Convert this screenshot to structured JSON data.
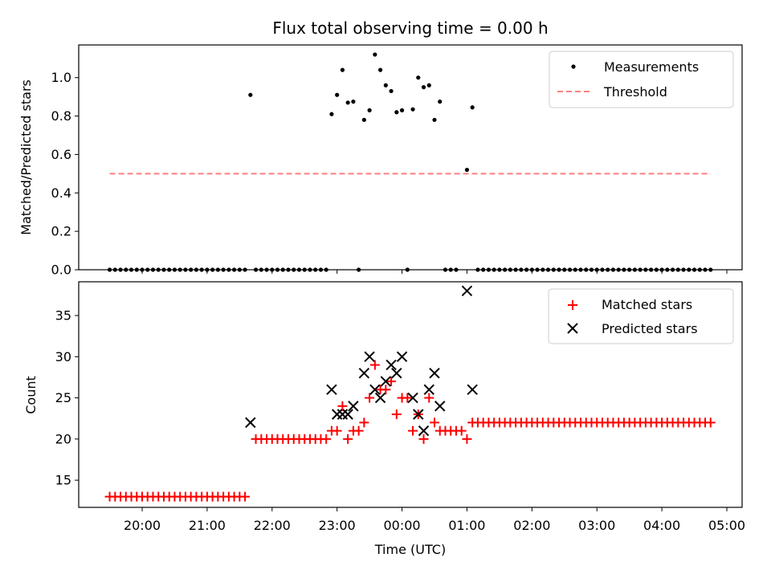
{
  "chart_data": [
    {
      "type": "scatter",
      "title": "Flux total observing time = 0.00 h",
      "xlabel": "",
      "ylabel": "Matched/Predicted stars",
      "ylim": [
        0,
        1.17
      ],
      "yticks": [
        0.0,
        0.2,
        0.4,
        0.6,
        0.8,
        1.0
      ],
      "ytick_labels": [
        "0.0",
        "0.2",
        "0.4",
        "0.6",
        "0.8",
        "1.0"
      ],
      "legend_position": "top-right",
      "series": [
        {
          "name": "Measurements",
          "marker": "dot",
          "color": "#000000",
          "points": [
            [
              "19:30",
              0
            ],
            [
              "19:35",
              0
            ],
            [
              "19:40",
              0
            ],
            [
              "19:45",
              0
            ],
            [
              "19:50",
              0
            ],
            [
              "19:55",
              0
            ],
            [
              "20:00",
              0
            ],
            [
              "20:05",
              0
            ],
            [
              "20:10",
              0
            ],
            [
              "20:15",
              0
            ],
            [
              "20:20",
              0
            ],
            [
              "20:25",
              0
            ],
            [
              "20:30",
              0
            ],
            [
              "20:35",
              0
            ],
            [
              "20:40",
              0
            ],
            [
              "20:45",
              0
            ],
            [
              "20:50",
              0
            ],
            [
              "20:55",
              0
            ],
            [
              "21:00",
              0
            ],
            [
              "21:05",
              0
            ],
            [
              "21:10",
              0
            ],
            [
              "21:15",
              0
            ],
            [
              "21:20",
              0
            ],
            [
              "21:25",
              0
            ],
            [
              "21:30",
              0
            ],
            [
              "21:35",
              0
            ],
            [
              "21:40",
              0.91
            ],
            [
              "21:45",
              0
            ],
            [
              "21:50",
              0
            ],
            [
              "21:55",
              0
            ],
            [
              "22:00",
              0
            ],
            [
              "22:05",
              0
            ],
            [
              "22:10",
              0
            ],
            [
              "22:15",
              0
            ],
            [
              "22:20",
              0
            ],
            [
              "22:25",
              0
            ],
            [
              "22:30",
              0
            ],
            [
              "22:35",
              0
            ],
            [
              "22:40",
              0
            ],
            [
              "22:45",
              0
            ],
            [
              "22:50",
              0
            ],
            [
              "22:55",
              0.81
            ],
            [
              "23:00",
              0.91
            ],
            [
              "23:05",
              1.04
            ],
            [
              "23:10",
              0.87
            ],
            [
              "23:15",
              0.875
            ],
            [
              "23:20",
              0
            ],
            [
              "23:25",
              0.78
            ],
            [
              "23:30",
              0.83
            ],
            [
              "23:35",
              1.12
            ],
            [
              "23:40",
              1.04
            ],
            [
              "23:45",
              0.96
            ],
            [
              "23:50",
              0.93
            ],
            [
              "23:55",
              0.82
            ],
            [
              "00:00",
              0.83
            ],
            [
              "00:05",
              0
            ],
            [
              "00:10",
              0.835
            ],
            [
              "00:15",
              1.0
            ],
            [
              "00:20",
              0.95
            ],
            [
              "00:25",
              0.96
            ],
            [
              "00:30",
              0.78
            ],
            [
              "00:35",
              0.875
            ],
            [
              "00:40",
              0
            ],
            [
              "00:45",
              0
            ],
            [
              "00:50",
              0
            ],
            [
              "01:00",
              0.52
            ],
            [
              "01:05",
              0.845
            ],
            [
              "01:10",
              0
            ],
            [
              "01:15",
              0
            ],
            [
              "01:20",
              0
            ],
            [
              "01:25",
              0
            ],
            [
              "01:30",
              0
            ],
            [
              "01:35",
              0
            ],
            [
              "01:40",
              0
            ],
            [
              "01:45",
              0
            ],
            [
              "01:50",
              0
            ],
            [
              "01:55",
              0
            ],
            [
              "02:00",
              0
            ],
            [
              "02:05",
              0
            ],
            [
              "02:10",
              0
            ],
            [
              "02:15",
              0
            ],
            [
              "02:20",
              0
            ],
            [
              "02:25",
              0
            ],
            [
              "02:30",
              0
            ],
            [
              "02:35",
              0
            ],
            [
              "02:40",
              0
            ],
            [
              "02:45",
              0
            ],
            [
              "02:50",
              0
            ],
            [
              "02:55",
              0
            ],
            [
              "03:00",
              0
            ],
            [
              "03:05",
              0
            ],
            [
              "03:10",
              0
            ],
            [
              "03:15",
              0
            ],
            [
              "03:20",
              0
            ],
            [
              "03:25",
              0
            ],
            [
              "03:30",
              0
            ],
            [
              "03:35",
              0
            ],
            [
              "03:40",
              0
            ],
            [
              "03:45",
              0
            ],
            [
              "03:50",
              0
            ],
            [
              "03:55",
              0
            ],
            [
              "04:00",
              0
            ],
            [
              "04:05",
              0
            ],
            [
              "04:10",
              0
            ],
            [
              "04:15",
              0
            ],
            [
              "04:20",
              0
            ],
            [
              "04:25",
              0
            ],
            [
              "04:30",
              0
            ],
            [
              "04:35",
              0
            ],
            [
              "04:40",
              0
            ],
            [
              "04:45",
              0
            ]
          ]
        },
        {
          "name": "Threshold",
          "marker": "dashed-line",
          "color": "#ff7f7f",
          "points": [
            [
              "19:30",
              0.5
            ],
            [
              "04:45",
              0.5
            ]
          ]
        }
      ]
    },
    {
      "type": "scatter",
      "title": "",
      "xlabel": "Time (UTC)",
      "ylabel": "Count",
      "ylim": [
        11.7,
        39.1
      ],
      "yticks": [
        15,
        20,
        25,
        30,
        35
      ],
      "ytick_labels": [
        "15",
        "20",
        "25",
        "30",
        "35"
      ],
      "x_tick_labels": [
        "20:00",
        "21:00",
        "22:00",
        "23:00",
        "00:00",
        "01:00",
        "02:00",
        "03:00",
        "04:00",
        "05:00"
      ],
      "legend_position": "top-right",
      "series": [
        {
          "name": "Matched stars",
          "marker": "plus",
          "color": "#ff0000",
          "points": [
            [
              "19:30",
              13
            ],
            [
              "19:35",
              13
            ],
            [
              "19:40",
              13
            ],
            [
              "19:45",
              13
            ],
            [
              "19:50",
              13
            ],
            [
              "19:55",
              13
            ],
            [
              "20:00",
              13
            ],
            [
              "20:05",
              13
            ],
            [
              "20:10",
              13
            ],
            [
              "20:15",
              13
            ],
            [
              "20:20",
              13
            ],
            [
              "20:25",
              13
            ],
            [
              "20:30",
              13
            ],
            [
              "20:35",
              13
            ],
            [
              "20:40",
              13
            ],
            [
              "20:45",
              13
            ],
            [
              "20:50",
              13
            ],
            [
              "20:55",
              13
            ],
            [
              "21:00",
              13
            ],
            [
              "21:05",
              13
            ],
            [
              "21:10",
              13
            ],
            [
              "21:15",
              13
            ],
            [
              "21:20",
              13
            ],
            [
              "21:25",
              13
            ],
            [
              "21:30",
              13
            ],
            [
              "21:35",
              13
            ],
            [
              "21:45",
              20
            ],
            [
              "21:50",
              20
            ],
            [
              "21:55",
              20
            ],
            [
              "22:00",
              20
            ],
            [
              "22:05",
              20
            ],
            [
              "22:10",
              20
            ],
            [
              "22:15",
              20
            ],
            [
              "22:20",
              20
            ],
            [
              "22:25",
              20
            ],
            [
              "22:30",
              20
            ],
            [
              "22:35",
              20
            ],
            [
              "22:40",
              20
            ],
            [
              "22:45",
              20
            ],
            [
              "22:50",
              20
            ],
            [
              "22:55",
              21
            ],
            [
              "23:00",
              21
            ],
            [
              "23:05",
              24
            ],
            [
              "23:10",
              20
            ],
            [
              "23:15",
              21
            ],
            [
              "23:20",
              21
            ],
            [
              "23:25",
              22
            ],
            [
              "23:30",
              25
            ],
            [
              "23:35",
              29
            ],
            [
              "23:40",
              26
            ],
            [
              "23:45",
              26
            ],
            [
              "23:50",
              27
            ],
            [
              "23:55",
              23
            ],
            [
              "00:00",
              25
            ],
            [
              "00:05",
              25
            ],
            [
              "00:10",
              21
            ],
            [
              "00:15",
              23
            ],
            [
              "00:20",
              20
            ],
            [
              "00:25",
              25
            ],
            [
              "00:30",
              22
            ],
            [
              "00:35",
              21
            ],
            [
              "00:40",
              21
            ],
            [
              "00:45",
              21
            ],
            [
              "00:50",
              21
            ],
            [
              "00:55",
              21
            ],
            [
              "01:00",
              20
            ],
            [
              "01:05",
              22
            ],
            [
              "01:10",
              22
            ],
            [
              "01:15",
              22
            ],
            [
              "01:20",
              22
            ],
            [
              "01:25",
              22
            ],
            [
              "01:30",
              22
            ],
            [
              "01:35",
              22
            ],
            [
              "01:40",
              22
            ],
            [
              "01:45",
              22
            ],
            [
              "01:50",
              22
            ],
            [
              "01:55",
              22
            ],
            [
              "02:00",
              22
            ],
            [
              "02:05",
              22
            ],
            [
              "02:10",
              22
            ],
            [
              "02:15",
              22
            ],
            [
              "02:20",
              22
            ],
            [
              "02:25",
              22
            ],
            [
              "02:30",
              22
            ],
            [
              "02:35",
              22
            ],
            [
              "02:40",
              22
            ],
            [
              "02:45",
              22
            ],
            [
              "02:50",
              22
            ],
            [
              "02:55",
              22
            ],
            [
              "03:00",
              22
            ],
            [
              "03:05",
              22
            ],
            [
              "03:10",
              22
            ],
            [
              "03:15",
              22
            ],
            [
              "03:20",
              22
            ],
            [
              "03:25",
              22
            ],
            [
              "03:30",
              22
            ],
            [
              "03:35",
              22
            ],
            [
              "03:40",
              22
            ],
            [
              "03:45",
              22
            ],
            [
              "03:50",
              22
            ],
            [
              "03:55",
              22
            ],
            [
              "04:00",
              22
            ],
            [
              "04:05",
              22
            ],
            [
              "04:10",
              22
            ],
            [
              "04:15",
              22
            ],
            [
              "04:20",
              22
            ],
            [
              "04:25",
              22
            ],
            [
              "04:30",
              22
            ],
            [
              "04:35",
              22
            ],
            [
              "04:40",
              22
            ],
            [
              "04:45",
              22
            ]
          ]
        },
        {
          "name": "Predicted stars",
          "marker": "cross",
          "color": "#000000",
          "points": [
            [
              "21:40",
              22
            ],
            [
              "22:55",
              26
            ],
            [
              "23:00",
              23
            ],
            [
              "23:05",
              23
            ],
            [
              "23:10",
              23
            ],
            [
              "23:15",
              24
            ],
            [
              "23:25",
              28
            ],
            [
              "23:30",
              30
            ],
            [
              "23:35",
              26
            ],
            [
              "23:40",
              25
            ],
            [
              "23:45",
              27
            ],
            [
              "23:50",
              29
            ],
            [
              "23:55",
              28
            ],
            [
              "00:00",
              30
            ],
            [
              "00:10",
              25
            ],
            [
              "00:15",
              23
            ],
            [
              "00:20",
              21
            ],
            [
              "00:25",
              26
            ],
            [
              "00:30",
              28
            ],
            [
              "00:35",
              24
            ],
            [
              "01:00",
              38
            ],
            [
              "01:05",
              26
            ]
          ]
        }
      ]
    }
  ]
}
